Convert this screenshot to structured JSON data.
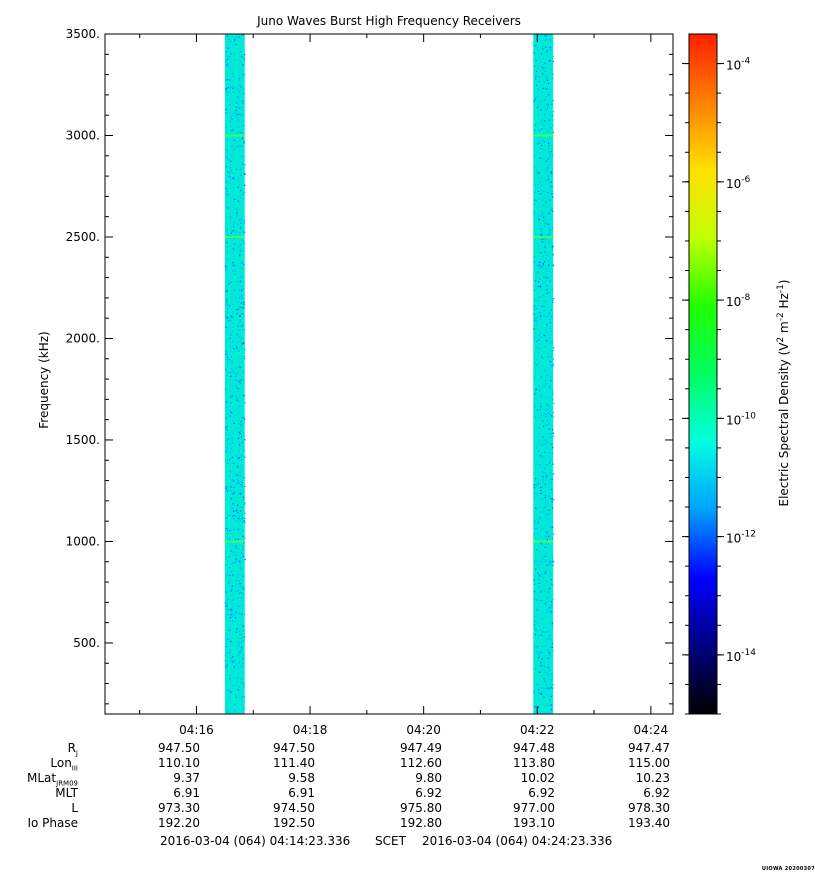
{
  "chart_data": {
    "type": "heatmap",
    "title": "Juno Waves Burst High Frequency Receivers",
    "ylabel": "Frequency (kHz)",
    "ylim": [
      150,
      3500
    ],
    "yticks": [
      {
        "v": 500,
        "label": "500."
      },
      {
        "v": 1000,
        "label": "1000."
      },
      {
        "v": 1500,
        "label": "1500."
      },
      {
        "v": 2000,
        "label": "2000."
      },
      {
        "v": 2500,
        "label": "2500."
      },
      {
        "v": 3000,
        "label": "3000."
      },
      {
        "v": 3500,
        "label": "3500."
      }
    ],
    "xrange_minutes": [
      14.39,
      24.39
    ],
    "xticks": [
      {
        "v": 16,
        "label": "04:16"
      },
      {
        "v": 18,
        "label": "04:18"
      },
      {
        "v": 20,
        "label": "04:20"
      },
      {
        "v": 22,
        "label": "04:22"
      },
      {
        "v": 24,
        "label": "04:24"
      }
    ],
    "bursts": [
      {
        "start_min": 16.5,
        "end_min": 16.85
      },
      {
        "start_min": 21.93,
        "end_min": 22.28
      }
    ],
    "burst_bright_freqs_khz": [
      1000,
      2500,
      3000
    ],
    "colorbar": {
      "label": "Electric Spectral Density (V² m⁻² Hz⁻¹)",
      "label_base": "Electric Spectral Density (V",
      "label_sup1": "2",
      "label_mid": " m",
      "label_sup2": "-2",
      "label_mid2": " Hz",
      "label_sup3": "-1",
      "label_end": ")",
      "log_range": [
        -15,
        -3.5
      ],
      "ticks": [
        {
          "exp": -14,
          "base": "10",
          "sup": "-14"
        },
        {
          "exp": -12,
          "base": "10",
          "sup": "-12"
        },
        {
          "exp": -10,
          "base": "10",
          "sup": "-10"
        },
        {
          "exp": -8,
          "base": "10",
          "sup": "-8"
        },
        {
          "exp": -6,
          "base": "10",
          "sup": "-6"
        },
        {
          "exp": -4,
          "base": "10",
          "sup": "-4"
        }
      ],
      "colors": [
        "#000000",
        "#000080",
        "#0000ff",
        "#00a0ff",
        "#00ffe0",
        "#00ff60",
        "#20ff00",
        "#c0ff00",
        "#ffe000",
        "#ff8000",
        "#ff2000"
      ]
    }
  },
  "ephemeris": {
    "rows": [
      {
        "label": "R",
        "sub": "J",
        "values": [
          "947.50",
          "947.50",
          "947.49",
          "947.48",
          "947.47"
        ]
      },
      {
        "label": "Lon",
        "sub": "III",
        "values": [
          "110.10",
          "111.40",
          "112.60",
          "113.80",
          "115.00"
        ]
      },
      {
        "label": "MLat",
        "sub": "JRM09",
        "values": [
          "9.37",
          "9.58",
          "9.80",
          "10.02",
          "10.23"
        ]
      },
      {
        "label": "MLT",
        "sub": "",
        "values": [
          "6.91",
          "6.91",
          "6.92",
          "6.92",
          "6.92"
        ]
      },
      {
        "label": "L",
        "sub": "",
        "values": [
          "973.30",
          "974.50",
          "975.80",
          "977.00",
          "978.30"
        ]
      },
      {
        "label": "Io Phase",
        "sub": "",
        "values": [
          "192.20",
          "192.50",
          "192.80",
          "193.10",
          "193.40"
        ]
      }
    ]
  },
  "scet": {
    "start": "2016-03-04 (064) 04:14:23.336",
    "label": "SCET",
    "end": "2016-03-04 (064) 04:24:23.336"
  },
  "stamp": "UIOWA 20200307"
}
